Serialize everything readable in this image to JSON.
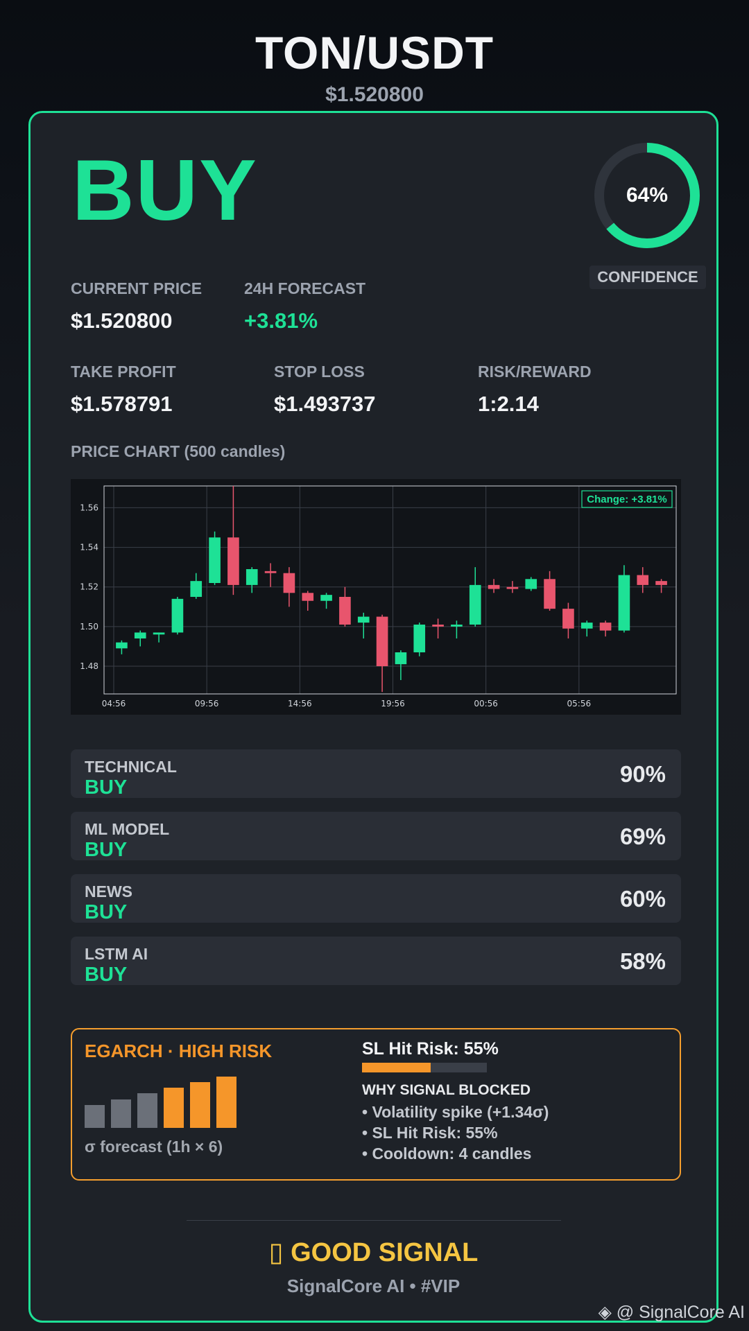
{
  "header": {
    "pair": "TON/USDT",
    "price": "$1.520800"
  },
  "signal": {
    "action": "BUY",
    "confidence_value": 0.64,
    "confidence_text": "64%",
    "confidence_label": "CONFIDENCE"
  },
  "stats": {
    "current_price_label": "CURRENT PRICE",
    "current_price": "$1.520800",
    "forecast_label": "24H FORECAST",
    "forecast": "+3.81%",
    "take_profit_label": "TAKE PROFIT",
    "take_profit": "$1.578791",
    "stop_loss_label": "STOP LOSS",
    "stop_loss": "$1.493737",
    "risk_reward_label": "RISK/REWARD",
    "risk_reward": "1:2.14"
  },
  "chart_label": "PRICE CHART (500 candles)",
  "chart_data": {
    "type": "candlestick",
    "x_ticks": [
      "04:56",
      "09:56",
      "14:56",
      "19:56",
      "00:56",
      "05:56"
    ],
    "y_ticks": [
      "1.48",
      "1.50",
      "1.52",
      "1.54",
      "1.56"
    ],
    "ylim": [
      1.466,
      1.571
    ],
    "grid": true,
    "annotation": "Change: +3.81%",
    "up_color": "#1ee196",
    "down_color": "#e8556d",
    "candles": [
      {
        "o": 1.489,
        "h": 1.493,
        "l": 1.486,
        "c": 1.492
      },
      {
        "o": 1.494,
        "h": 1.498,
        "l": 1.49,
        "c": 1.497
      },
      {
        "o": 1.496,
        "h": 1.497,
        "l": 1.492,
        "c": 1.497
      },
      {
        "o": 1.497,
        "h": 1.515,
        "l": 1.496,
        "c": 1.514
      },
      {
        "o": 1.515,
        "h": 1.527,
        "l": 1.514,
        "c": 1.523
      },
      {
        "o": 1.522,
        "h": 1.548,
        "l": 1.521,
        "c": 1.545
      },
      {
        "o": 1.545,
        "h": 1.571,
        "l": 1.516,
        "c": 1.521
      },
      {
        "o": 1.521,
        "h": 1.53,
        "l": 1.517,
        "c": 1.529
      },
      {
        "o": 1.528,
        "h": 1.532,
        "l": 1.52,
        "c": 1.527
      },
      {
        "o": 1.527,
        "h": 1.53,
        "l": 1.51,
        "c": 1.517
      },
      {
        "o": 1.517,
        "h": 1.518,
        "l": 1.508,
        "c": 1.513
      },
      {
        "o": 1.513,
        "h": 1.517,
        "l": 1.509,
        "c": 1.516
      },
      {
        "o": 1.515,
        "h": 1.52,
        "l": 1.5,
        "c": 1.501
      },
      {
        "o": 1.502,
        "h": 1.507,
        "l": 1.494,
        "c": 1.505
      },
      {
        "o": 1.505,
        "h": 1.506,
        "l": 1.467,
        "c": 1.48
      },
      {
        "o": 1.481,
        "h": 1.488,
        "l": 1.473,
        "c": 1.487
      },
      {
        "o": 1.487,
        "h": 1.502,
        "l": 1.485,
        "c": 1.501
      },
      {
        "o": 1.501,
        "h": 1.504,
        "l": 1.494,
        "c": 1.5
      },
      {
        "o": 1.5,
        "h": 1.503,
        "l": 1.494,
        "c": 1.501
      },
      {
        "o": 1.501,
        "h": 1.53,
        "l": 1.5,
        "c": 1.521
      },
      {
        "o": 1.521,
        "h": 1.524,
        "l": 1.517,
        "c": 1.519
      },
      {
        "o": 1.52,
        "h": 1.523,
        "l": 1.517,
        "c": 1.519
      },
      {
        "o": 1.519,
        "h": 1.525,
        "l": 1.518,
        "c": 1.524
      },
      {
        "o": 1.524,
        "h": 1.528,
        "l": 1.508,
        "c": 1.509
      },
      {
        "o": 1.509,
        "h": 1.512,
        "l": 1.494,
        "c": 1.499
      },
      {
        "o": 1.499,
        "h": 1.503,
        "l": 1.495,
        "c": 1.502
      },
      {
        "o": 1.502,
        "h": 1.503,
        "l": 1.495,
        "c": 1.498
      },
      {
        "o": 1.498,
        "h": 1.531,
        "l": 1.497,
        "c": 1.526
      },
      {
        "o": 1.526,
        "h": 1.53,
        "l": 1.517,
        "c": 1.521
      },
      {
        "o": 1.523,
        "h": 1.524,
        "l": 1.517,
        "c": 1.521
      }
    ]
  },
  "sources": [
    {
      "name": "TECHNICAL",
      "signal": "BUY",
      "pct": "90%"
    },
    {
      "name": "ML MODEL",
      "signal": "BUY",
      "pct": "69%"
    },
    {
      "name": "NEWS",
      "signal": "BUY",
      "pct": "60%"
    },
    {
      "name": "LSTM AI",
      "signal": "BUY",
      "pct": "58%"
    }
  ],
  "risk": {
    "title": "EGARCH · HIGH RISK",
    "sigma_bars": [
      0.45,
      0.55,
      0.67,
      0.78,
      0.89,
      1.0
    ],
    "sigma_colors": [
      "#6b7079",
      "#6b7079",
      "#6b7079",
      "#f5962a",
      "#f5962a",
      "#f5962a"
    ],
    "sigma_label": "σ forecast (1h × 6)",
    "sl_hit_title": "SL Hit Risk: 55%",
    "sl_hit_value": 0.55,
    "why_title": "WHY SIGNAL BLOCKED",
    "why_items": [
      "• Volatility spike (+1.34σ)",
      "• SL Hit Risk: 55%",
      "• Cooldown: 4 candles"
    ]
  },
  "footer": {
    "good_signal": "▯ GOOD SIGNAL",
    "brand": "SignalCore AI • #VIP",
    "watermark": "◈ @ SignalCore AI"
  }
}
